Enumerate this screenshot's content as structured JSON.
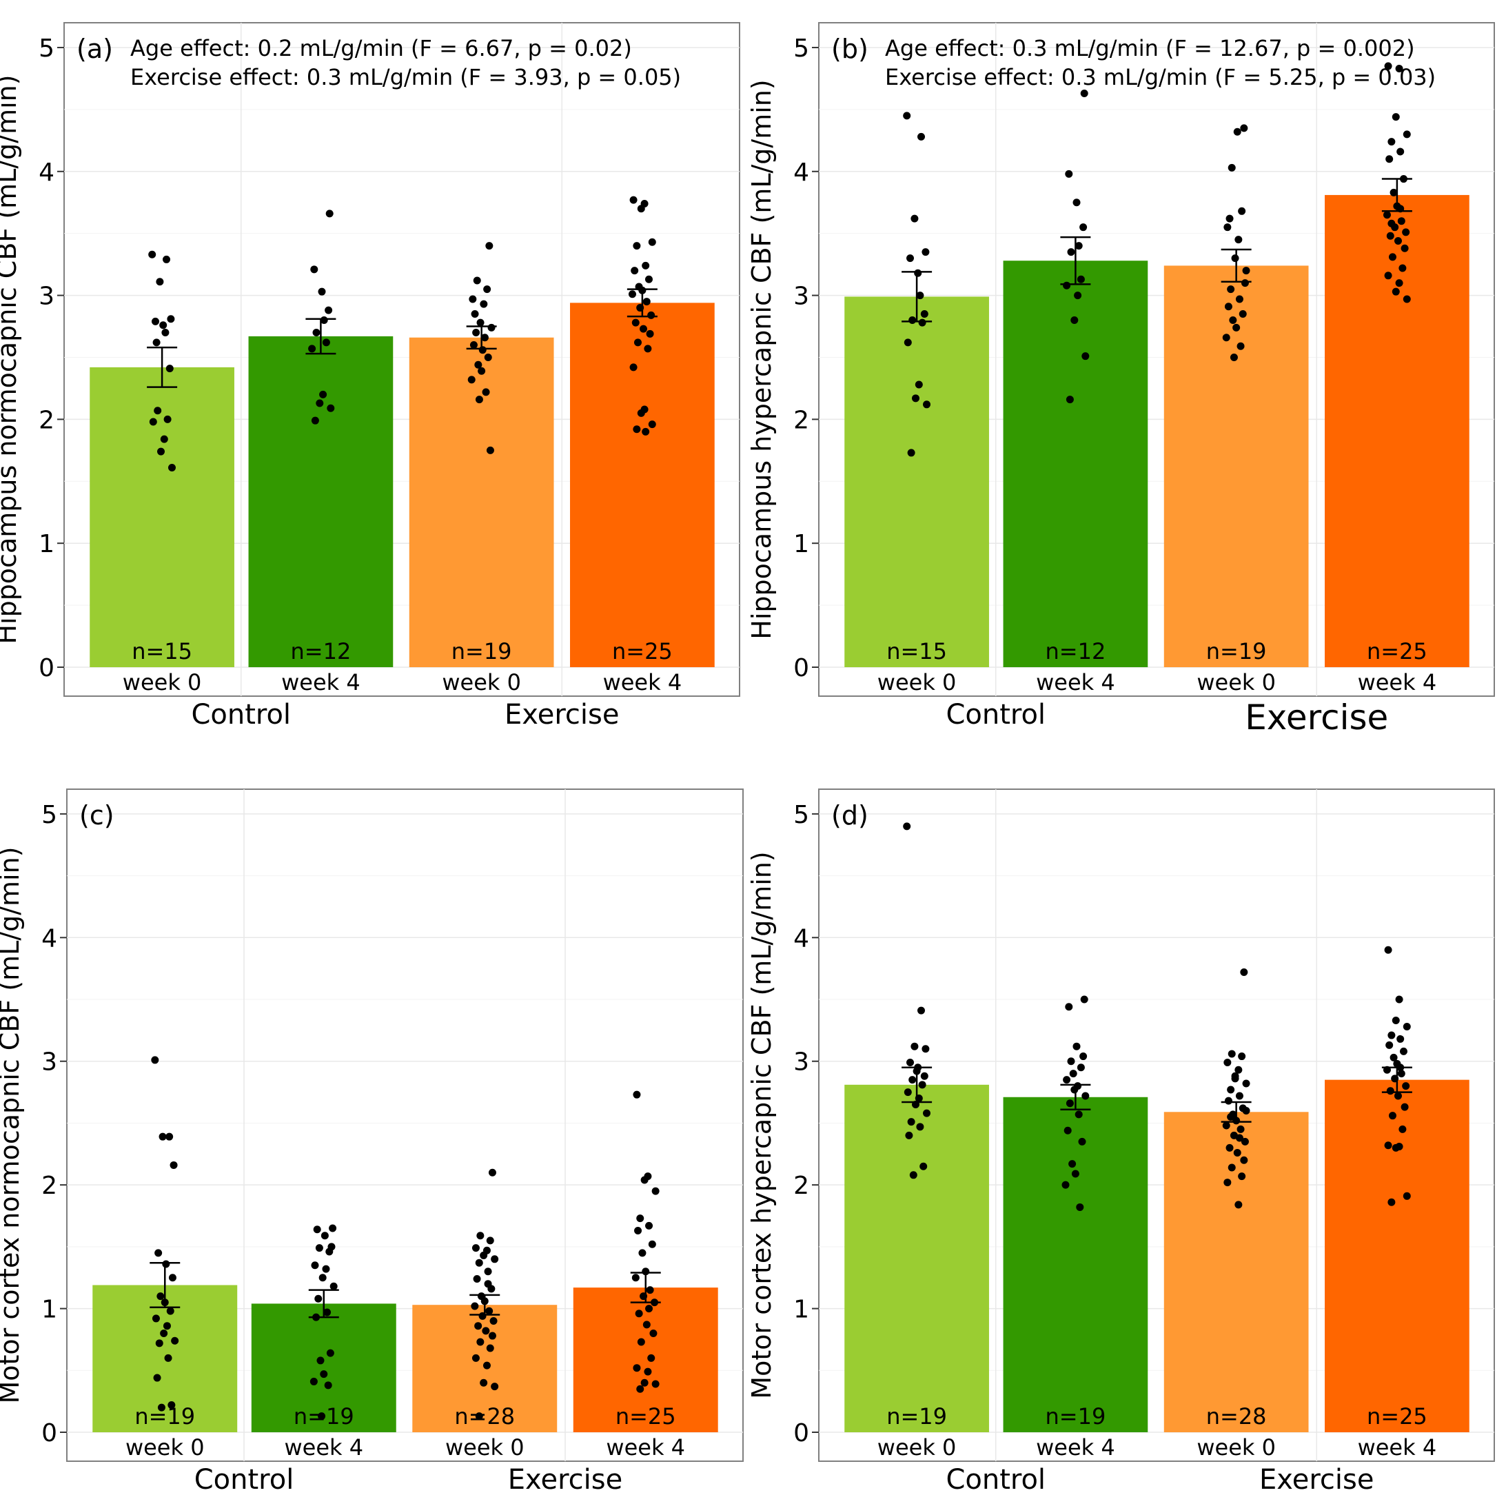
{
  "colors": {
    "control_week0": "#9ACD32",
    "control_week4": "#339900",
    "exercise_week0": "#FF9933",
    "exercise_week4": "#FF6600"
  },
  "chart_data": [
    {
      "type": "bar",
      "panel": "(a)",
      "ylabel": "Hippocampus normocapnic CBF (mL/g/min)",
      "ylim": [
        0,
        5.2
      ],
      "yticks": [
        "0",
        "1",
        "2",
        "3",
        "4",
        "5"
      ],
      "annotations": [
        "Age effect: 0.2 mL/g/min (F = 6.67, p = 0.02)",
        "Exercise effect: 0.3 mL/g/min (F = 3.93, p = 0.05)"
      ],
      "groups": [
        "Control",
        "Exercise"
      ],
      "categories": [
        "week 0",
        "week 4",
        "week 0",
        "week 4"
      ],
      "values": [
        2.42,
        2.67,
        2.66,
        2.94
      ],
      "sem": [
        0.16,
        0.14,
        0.09,
        0.11
      ],
      "n": [
        "n=15",
        "n=12",
        "n=19",
        "n=25"
      ],
      "points": [
        [
          3.33,
          3.29,
          3.11,
          2.81,
          2.79,
          2.76,
          2.41,
          2.07,
          2.0,
          1.98,
          1.84,
          1.74,
          1.61,
          2.62,
          2.7
        ],
        [
          3.66,
          3.21,
          3.03,
          2.88,
          2.7,
          2.62,
          2.57,
          2.2,
          2.13,
          2.09,
          1.99,
          2.8
        ],
        [
          3.4,
          3.12,
          3.05,
          2.97,
          2.93,
          2.78,
          2.74,
          2.7,
          2.66,
          2.6,
          2.5,
          2.44,
          2.39,
          2.32,
          2.22,
          2.16,
          1.75,
          2.85,
          2.56
        ],
        [
          3.77,
          3.74,
          3.7,
          3.43,
          3.4,
          3.24,
          3.2,
          3.13,
          3.07,
          3.04,
          3.01,
          2.95,
          2.9,
          2.84,
          2.78,
          2.73,
          2.69,
          2.62,
          2.57,
          2.42,
          2.08,
          2.05,
          1.96,
          1.92,
          1.9
        ]
      ]
    },
    {
      "type": "bar",
      "panel": "(b)",
      "ylabel": "Hippocampus hypercapnic CBF (mL/g/min)",
      "ylim": [
        0,
        5.2
      ],
      "yticks": [
        "0",
        "1",
        "2",
        "3",
        "4",
        "5"
      ],
      "annotations": [
        "Age effect: 0.3 mL/g/min (F = 12.67, p = 0.002)",
        "Exercise effect: 0.3 mL/g/min (F = 5.25, p = 0.03)"
      ],
      "groups": [
        "Control",
        "Exercise"
      ],
      "categories": [
        "week 0",
        "week 4",
        "week 0",
        "week 4"
      ],
      "values": [
        2.99,
        3.28,
        3.24,
        3.81
      ],
      "sem": [
        0.2,
        0.19,
        0.13,
        0.13
      ],
      "n": [
        "n=15",
        "n=12",
        "n=19",
        "n=25"
      ],
      "points": [
        [
          4.45,
          4.28,
          3.62,
          3.35,
          3.3,
          3.18,
          2.85,
          2.8,
          2.78,
          2.62,
          2.28,
          2.17,
          2.12,
          1.73,
          3.0
        ],
        [
          4.63,
          3.98,
          3.75,
          3.55,
          3.35,
          3.13,
          3.08,
          3.0,
          2.8,
          2.51,
          2.16,
          3.4
        ],
        [
          4.35,
          4.03,
          3.68,
          3.55,
          3.45,
          3.3,
          3.2,
          3.05,
          2.97,
          2.91,
          2.85,
          2.8,
          2.74,
          2.66,
          2.59,
          2.5,
          3.1,
          3.62,
          4.32
        ],
        [
          4.85,
          4.83,
          4.44,
          4.3,
          4.24,
          4.16,
          4.1,
          3.94,
          3.83,
          3.72,
          3.65,
          3.6,
          3.55,
          3.51,
          3.48,
          3.44,
          3.38,
          3.31,
          3.22,
          3.16,
          3.1,
          3.03,
          2.97,
          3.58,
          3.7
        ]
      ]
    },
    {
      "type": "bar",
      "panel": "(c)",
      "ylabel": "Motor cortex normocapnic CBF (mL/g/min)",
      "ylim": [
        0,
        5.2
      ],
      "yticks": [
        "0",
        "1",
        "2",
        "3",
        "4",
        "5"
      ],
      "annotations": [],
      "groups": [
        "Control",
        "Exercise"
      ],
      "categories": [
        "week 0",
        "week 4",
        "week 0",
        "week 4"
      ],
      "values": [
        1.19,
        1.04,
        1.03,
        1.17
      ],
      "sem": [
        0.18,
        0.11,
        0.08,
        0.12
      ],
      "n": [
        "n=19",
        "n=19",
        "n=28",
        "n=25"
      ],
      "points": [
        [
          3.01,
          2.39,
          2.39,
          2.16,
          1.45,
          1.36,
          1.25,
          1.1,
          0.98,
          0.92,
          0.86,
          0.8,
          0.74,
          0.72,
          0.6,
          0.44,
          0.22,
          0.2,
          1.05
        ],
        [
          1.65,
          1.64,
          1.59,
          1.5,
          1.49,
          1.46,
          1.35,
          1.32,
          1.25,
          1.18,
          1.08,
          0.97,
          0.93,
          0.64,
          0.58,
          0.47,
          0.41,
          0.38,
          0.13
        ],
        [
          2.1,
          1.59,
          1.55,
          1.49,
          1.47,
          1.43,
          1.4,
          1.37,
          1.3,
          1.24,
          1.16,
          1.1,
          1.06,
          1.02,
          0.98,
          0.94,
          0.9,
          0.86,
          0.82,
          0.78,
          0.73,
          0.68,
          0.6,
          0.54,
          0.4,
          0.37,
          0.13,
          1.2
        ],
        [
          2.73,
          2.07,
          2.04,
          1.95,
          1.73,
          1.67,
          1.63,
          1.52,
          1.45,
          1.3,
          1.25,
          1.15,
          1.1,
          1.05,
          0.96,
          0.87,
          0.8,
          0.73,
          0.6,
          0.52,
          0.49,
          0.4,
          0.39,
          0.35,
          1.0
        ]
      ]
    },
    {
      "type": "bar",
      "panel": "(d)",
      "ylabel": "Motor cortex hypercapnic CBF (mL/g/min)",
      "ylim": [
        0,
        5.2
      ],
      "yticks": [
        "0",
        "1",
        "2",
        "3",
        "4",
        "5"
      ],
      "annotations": [],
      "groups": [
        "Control",
        "Exercise"
      ],
      "categories": [
        "week 0",
        "week 4",
        "week 0",
        "week 4"
      ],
      "values": [
        2.81,
        2.71,
        2.59,
        2.85
      ],
      "sem": [
        0.14,
        0.1,
        0.08,
        0.1
      ],
      "n": [
        "n=19",
        "n=19",
        "n=28",
        "n=25"
      ],
      "points": [
        [
          4.9,
          3.41,
          3.12,
          3.1,
          2.99,
          2.95,
          2.88,
          2.85,
          2.81,
          2.75,
          2.7,
          2.65,
          2.58,
          2.51,
          2.47,
          2.4,
          2.15,
          2.08,
          2.92
        ],
        [
          3.5,
          3.44,
          3.12,
          3.04,
          3.0,
          2.95,
          2.85,
          2.8,
          2.77,
          2.72,
          2.66,
          2.57,
          2.44,
          2.35,
          2.17,
          2.09,
          2.0,
          1.82,
          2.9
        ],
        [
          3.72,
          3.06,
          3.04,
          2.99,
          2.93,
          2.88,
          2.82,
          2.77,
          2.72,
          2.68,
          2.62,
          2.57,
          2.52,
          2.48,
          2.45,
          2.4,
          2.35,
          2.3,
          2.26,
          2.2,
          2.14,
          2.07,
          2.02,
          1.84,
          2.86,
          2.6,
          2.55,
          2.38
        ],
        [
          3.9,
          3.5,
          3.33,
          3.28,
          3.21,
          3.18,
          3.13,
          3.08,
          3.03,
          2.98,
          2.93,
          2.9,
          2.86,
          2.8,
          2.76,
          2.72,
          2.63,
          2.56,
          2.45,
          2.32,
          2.31,
          2.3,
          1.91,
          1.86,
          2.95
        ]
      ]
    }
  ]
}
